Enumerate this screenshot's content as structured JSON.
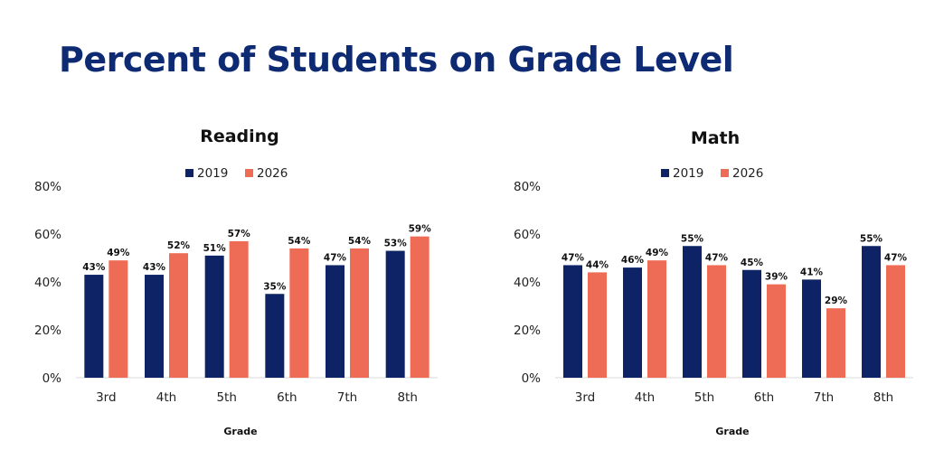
{
  "page": {
    "title": "Percent of Students on Grade Level"
  },
  "colors": {
    "series_2019": "#0d2366",
    "series_2026": "#ee6c55",
    "title": "#0d2a73",
    "axis_line": "#d9d9d9"
  },
  "chart_data": [
    {
      "type": "bar",
      "title": "Reading",
      "xlabel": "Grade",
      "ylabel": "",
      "ylim": [
        0,
        80
      ],
      "y_ticks": [
        "0%",
        "20%",
        "40%",
        "60%",
        "80%"
      ],
      "y_tick_values": [
        0,
        20,
        40,
        60,
        80
      ],
      "grid": false,
      "legend_position": "top-center",
      "categories": [
        "3rd",
        "4th",
        "5th",
        "6th",
        "7th",
        "8th"
      ],
      "series": [
        {
          "name": "2019",
          "values": [
            43,
            43,
            51,
            35,
            47,
            53
          ],
          "labels": [
            "43%",
            "43%",
            "51%",
            "35%",
            "47%",
            "53%"
          ]
        },
        {
          "name": "2026",
          "values": [
            49,
            52,
            57,
            54,
            54,
            59
          ],
          "labels": [
            "49%",
            "52%",
            "57%",
            "54%",
            "54%",
            "59%"
          ]
        }
      ]
    },
    {
      "type": "bar",
      "title": "Math",
      "xlabel": "Grade",
      "ylabel": "",
      "ylim": [
        0,
        80
      ],
      "y_ticks": [
        "0%",
        "20%",
        "40%",
        "60%",
        "80%"
      ],
      "y_tick_values": [
        0,
        20,
        40,
        60,
        80
      ],
      "grid": false,
      "legend_position": "top-center",
      "categories": [
        "3rd",
        "4th",
        "5th",
        "6th",
        "7th",
        "8th"
      ],
      "series": [
        {
          "name": "2019",
          "values": [
            47,
            46,
            55,
            45,
            41,
            55
          ],
          "labels": [
            "47%",
            "46%",
            "55%",
            "45%",
            "41%",
            "55%"
          ]
        },
        {
          "name": "2026",
          "values": [
            44,
            49,
            47,
            39,
            29,
            47
          ],
          "labels": [
            "44%",
            "49%",
            "47%",
            "39%",
            "29%",
            "47%"
          ]
        }
      ]
    }
  ]
}
